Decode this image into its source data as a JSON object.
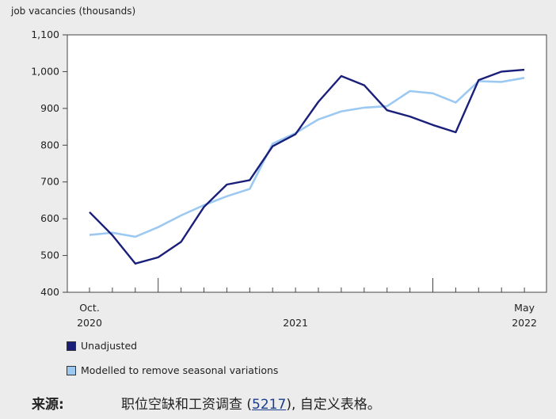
{
  "chart_data": {
    "type": "line",
    "ylabel": "job vacancies (thousands)",
    "ylim": [
      400,
      1100
    ],
    "y_ticks": [
      "400",
      "500",
      "600",
      "700",
      "800",
      "900",
      "1,000",
      "1,100"
    ],
    "x": [
      "2020-10",
      "2020-11",
      "2020-12",
      "2021-01",
      "2021-02",
      "2021-03",
      "2021-04",
      "2021-05",
      "2021-06",
      "2021-07",
      "2021-08",
      "2021-09",
      "2021-10",
      "2021-11",
      "2021-12",
      "2022-01",
      "2022-02",
      "2022-03",
      "2022-04",
      "2022-05"
    ],
    "x_tick_labels": [
      {
        "month": "Oct.",
        "year": "2020"
      },
      {
        "month": "",
        "year": "2021"
      },
      {
        "month": "May",
        "year": "2022"
      }
    ],
    "series": [
      {
        "name": "Unadjusted",
        "color": "#1a1f7a",
        "values": [
          618,
          555,
          478,
          495,
          537,
          632,
          693,
          705,
          797,
          830,
          918,
          988,
          963,
          895,
          878,
          855,
          835,
          977,
          1000,
          1005
        ]
      },
      {
        "name": "Modelled to remove seasonal variations",
        "color": "#9cc9f2",
        "values": [
          556,
          562,
          551,
          577,
          609,
          637,
          661,
          681,
          804,
          833,
          870,
          892,
          902,
          906,
          947,
          941,
          916,
          974,
          972,
          983
        ]
      }
    ],
    "grid": false,
    "legend": "bottom-left"
  },
  "source": {
    "label": "来源:",
    "text_before": "职位空缺和工资调查 (",
    "link": "5217",
    "text_after": "), 自定义表格。"
  }
}
